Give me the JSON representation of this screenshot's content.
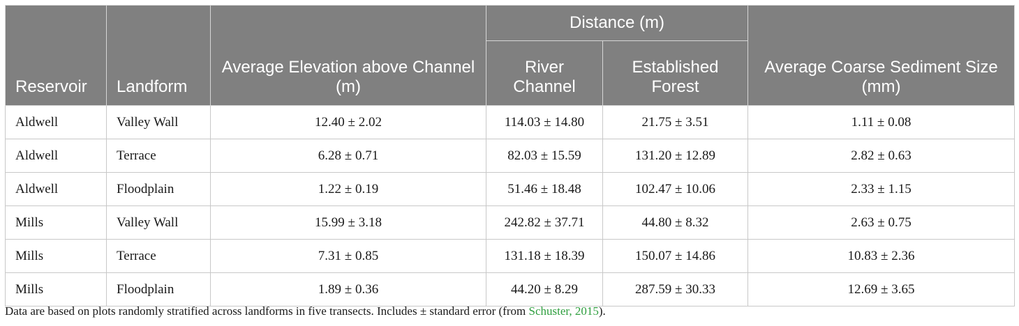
{
  "header": {
    "reservoir": "Reservoir",
    "landform": "Landform",
    "elevation": "Average Elevation above Channel (m)",
    "distance_group": "Distance (m)",
    "river_channel": "River Channel",
    "established_forest": "Established Forest",
    "sediment": "Average Coarse Sediment Size (mm)"
  },
  "rows": [
    {
      "reservoir": "Aldwell",
      "landform": "Valley Wall",
      "elevation": "12.40 ± 2.02",
      "river": "114.03 ± 14.80",
      "forest": "21.75 ± 3.51",
      "sediment": "1.11 ± 0.08"
    },
    {
      "reservoir": "Aldwell",
      "landform": "Terrace",
      "elevation": "6.28 ± 0.71",
      "river": "82.03 ± 15.59",
      "forest": "131.20 ± 12.89",
      "sediment": "2.82 ± 0.63"
    },
    {
      "reservoir": "Aldwell",
      "landform": "Floodplain",
      "elevation": "1.22 ± 0.19",
      "river": "51.46 ± 18.48",
      "forest": "102.47 ± 10.06",
      "sediment": "2.33 ± 1.15"
    },
    {
      "reservoir": "Mills",
      "landform": "Valley Wall",
      "elevation": "15.99 ± 3.18",
      "river": "242.82 ± 37.71",
      "forest": "44.80 ± 8.32",
      "sediment": "2.63 ± 0.75"
    },
    {
      "reservoir": "Mills",
      "landform": "Terrace",
      "elevation": "7.31 ± 0.85",
      "river": "131.18 ± 18.39",
      "forest": "150.07 ± 14.86",
      "sediment": "10.83 ± 2.36"
    },
    {
      "reservoir": "Mills",
      "landform": "Floodplain",
      "elevation": "1.89 ± 0.36",
      "river": "44.20 ± 8.29",
      "forest": "287.59 ± 30.33",
      "sediment": "12.69 ± 3.65"
    }
  ],
  "footnote": {
    "text_before": "Data are based on plots randomly stratified across landforms in five transects. Includes ± standard error (from ",
    "link": "Schuster, 2015",
    "text_after": ")."
  },
  "colors": {
    "header_bg": "#808080",
    "header_text": "#ffffff",
    "link": "#2e9e3e"
  }
}
